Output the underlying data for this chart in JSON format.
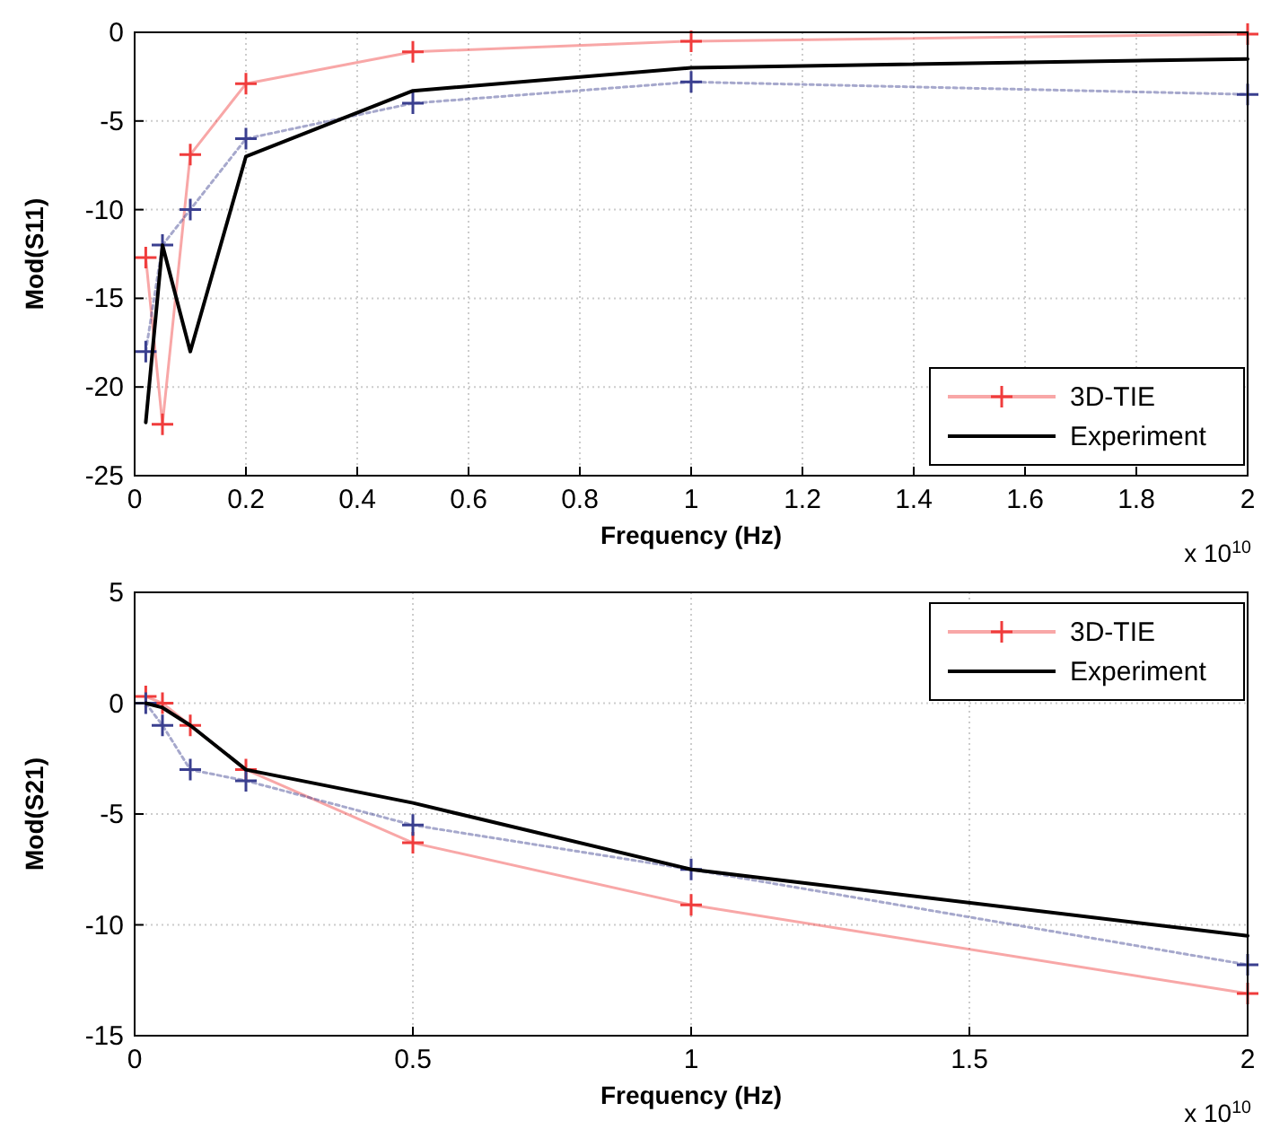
{
  "chart_data": [
    {
      "type": "line",
      "xlabel": "Frequency (Hz)",
      "ylabel": "Mod(S11)",
      "x": [
        0.02,
        0.05,
        0.1,
        0.2,
        0.5,
        1,
        2
      ],
      "xlim": [
        0,
        2
      ],
      "xticks": [
        0,
        0.2,
        0.4,
        0.6,
        0.8,
        1,
        1.2,
        1.4,
        1.6,
        1.8,
        2
      ],
      "ylim": [
        -25,
        0
      ],
      "yticks": [
        -25,
        -20,
        -15,
        -10,
        -5,
        0
      ],
      "grid": true,
      "legend": "bottom right",
      "annotations": [
        "x 10$^{10}$"
      ],
      "series": [
        {
          "name": "3D-TIE",
          "color": "#f03c3c",
          "marker": "cross",
          "line_style": "solid",
          "values": [
            -12.7,
            -22.1,
            -6.9,
            -2.9,
            -1.1,
            -0.5,
            -0.1
          ]
        },
        {
          "color": "#3a3f8f",
          "marker": "cross",
          "line_style": "dotted",
          "values": [
            -18,
            -12,
            -10,
            -6,
            -4,
            -2.8,
            -3.5
          ]
        },
        {
          "name": "Experiment",
          "color": "#000000",
          "marker": "none",
          "line_style": "solid",
          "values": [
            -22,
            -12,
            -18,
            -7,
            -3.3,
            -2,
            -1.5
          ]
        }
      ]
    },
    {
      "type": "line",
      "xlabel": "Frequency (Hz)",
      "ylabel": "Mod(S21)",
      "x": [
        0.02,
        0.05,
        0.1,
        0.2,
        0.5,
        1,
        2
      ],
      "xlim": [
        0,
        2
      ],
      "xticks": [
        0,
        0.5,
        1,
        1.5,
        2
      ],
      "ylim": [
        -15,
        5
      ],
      "yticks": [
        -15,
        -10,
        -5,
        0,
        5
      ],
      "grid": true,
      "legend": "top right",
      "annotations": [
        "x 10$^{10}$"
      ],
      "series": [
        {
          "name": "3D-TIE",
          "color": "#f03c3c",
          "marker": "cross",
          "line_style": "solid",
          "values": [
            0.3,
            0,
            -1,
            -3,
            -6.3,
            -9.1,
            -13.1
          ]
        },
        {
          "color": "#3a3f8f",
          "marker": "cross",
          "line_style": "dotted",
          "values": [
            0,
            -1,
            -3,
            -3.5,
            -5.5,
            -7.5,
            -11.8
          ]
        },
        {
          "name": "Experiment",
          "color": "#000000",
          "marker": "none",
          "line_style": "solid",
          "values": [
            0,
            -0.2,
            -1,
            -3,
            -4.5,
            -7.5,
            -10.5
          ]
        }
      ]
    }
  ]
}
